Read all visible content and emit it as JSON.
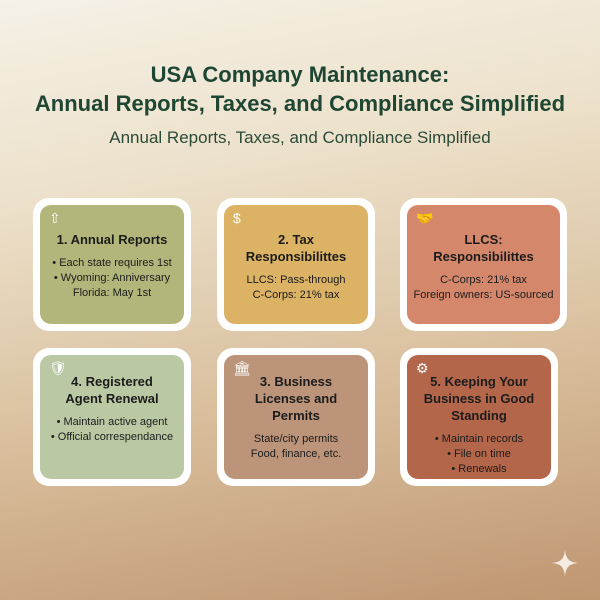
{
  "header": {
    "title_line1": "USA Company Maintenance:",
    "title_line2": "Annual Reports, Taxes, and Compliance Simplified",
    "subtitle": "Annual Reports, Taxes, and Compliance Simplified"
  },
  "cards": [
    {
      "icon": "document-upload-icon",
      "color": "#b3b67b",
      "title": "1. Annual Reports",
      "lines": [
        "• Each state requires 1st",
        "• Wyoming: Anniversary",
        "Florida: May 1st"
      ]
    },
    {
      "icon": "dollar-cycle-icon",
      "color": "#dcb264",
      "title": "2. Tax Responsibilittes",
      "lines": [
        "LLCS: Pass-through",
        "C-Corps: 21% tax"
      ]
    },
    {
      "icon": "handshake-icon",
      "color": "#d4876b",
      "title": "LLCS: Responsibilittes",
      "lines": [
        "C-Corps: 21% tax",
        "Foreign owners: US-sourced"
      ]
    },
    {
      "icon": "shield-check-icon",
      "color": "#bac9a4",
      "title": "4. Registered Agent Renewal",
      "lines": [
        "• Maintain active agent",
        "• Official correspendance"
      ]
    },
    {
      "icon": "bank-icon",
      "color": "#bc9479",
      "title": "3. Business Licenses and Permits",
      "lines": [
        "State/city permits",
        "Food, finance, etc."
      ]
    },
    {
      "icon": "gear-icon",
      "color": "#b4664b",
      "title": "5. Keeping Your Business in Good Standing",
      "lines": [
        "• Maintain records",
        "• File on time",
        "• Renewals"
      ]
    }
  ]
}
